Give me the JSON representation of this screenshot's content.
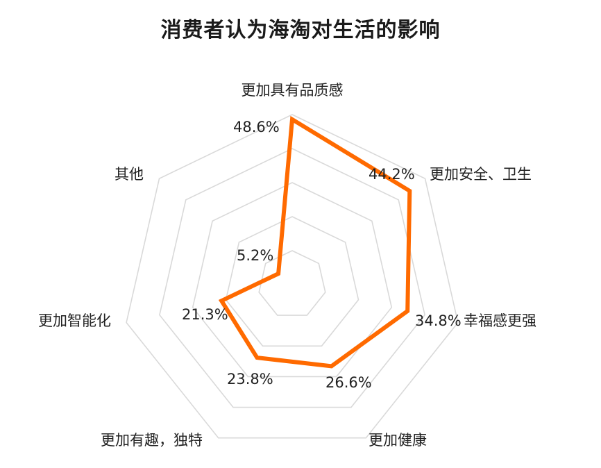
{
  "title": "消费者认为海淘对生活的影响",
  "colors": {
    "series": "#FF6A00",
    "grid": "#D9D9D9",
    "text": "#222222",
    "background": "#FFFFFF"
  },
  "chart_data": {
    "type": "radar",
    "title": "消费者认为海淘对生活的影响",
    "categories": [
      "更加具有品质感",
      "更加安全、卫生",
      "幸福感更强",
      "更加健康",
      "更加有趣，独特",
      "更加智能化",
      "其他"
    ],
    "series": [
      {
        "name": "消费者认为海淘对生活的影响",
        "values": [
          48.6,
          44.2,
          34.8,
          26.6,
          23.8,
          21.3,
          5.2
        ],
        "color": "#FF6A00"
      }
    ],
    "value_labels": [
      "48.6%",
      "44.2%",
      "34.8%",
      "26.6%",
      "23.8%",
      "21.3%",
      "5.2%"
    ],
    "range": [
      0,
      50
    ],
    "grid_rings": 5,
    "grid": true,
    "legend": "none",
    "unit": "%"
  }
}
